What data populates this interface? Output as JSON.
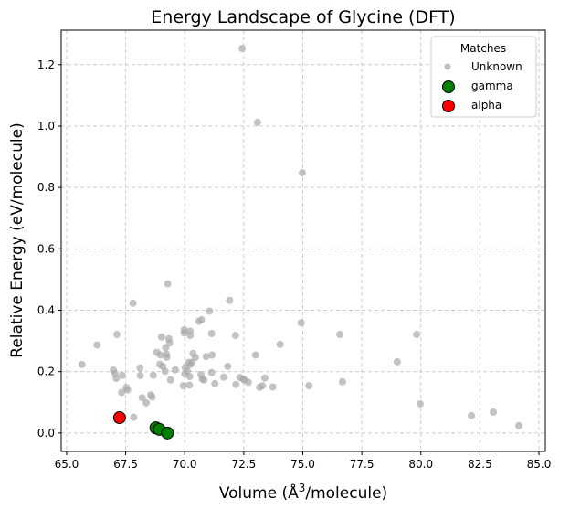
{
  "chart_data": {
    "type": "scatter",
    "title": "Energy Landscape of Glycine (DFT)",
    "xlabel": "Volume (Å³/molecule)",
    "xlabel_parts": {
      "pre": "Volume (Å",
      "sup": "3",
      "post": "/molecule)"
    },
    "ylabel": "Relative Energy (eV/molecule)",
    "xlim": [
      64.77,
      85.27
    ],
    "ylim": [
      -0.06,
      1.3125
    ],
    "xticks": [
      65.0,
      67.5,
      70.0,
      72.5,
      75.0,
      77.5,
      80.0,
      82.5,
      85.0
    ],
    "xtick_labels": [
      "65.0",
      "67.5",
      "70.0",
      "72.5",
      "75.0",
      "77.5",
      "80.0",
      "82.5",
      "85.0"
    ],
    "yticks": [
      0.0,
      0.2,
      0.4,
      0.6,
      0.8,
      1.0,
      1.2
    ],
    "ytick_labels": [
      "0.0",
      "0.2",
      "0.4",
      "0.6",
      "0.8",
      "1.0",
      "1.2"
    ],
    "grid": true,
    "legend": {
      "title": "Matches",
      "placement": "top-right"
    },
    "series": [
      {
        "name": "Unknown",
        "color": "#a9a9a9",
        "points": [
          [
            65.65,
            0.223
          ],
          [
            66.29,
            0.287
          ],
          [
            67.13,
            0.321
          ],
          [
            67.81,
            0.423
          ],
          [
            69.28,
            0.486
          ],
          [
            66.98,
            0.205
          ],
          [
            67.1,
            0.178
          ],
          [
            67.05,
            0.193
          ],
          [
            67.36,
            0.188
          ],
          [
            67.33,
            0.132
          ],
          [
            67.53,
            0.148
          ],
          [
            67.58,
            0.14
          ],
          [
            68.11,
            0.212
          ],
          [
            68.12,
            0.187
          ],
          [
            68.2,
            0.115
          ],
          [
            68.37,
            0.098
          ],
          [
            68.56,
            0.124
          ],
          [
            68.62,
            0.117
          ],
          [
            68.67,
            0.188
          ],
          [
            68.82,
            0.263
          ],
          [
            68.97,
            0.254
          ],
          [
            69.02,
            0.313
          ],
          [
            68.95,
            0.224
          ],
          [
            69.07,
            0.217
          ],
          [
            69.17,
            0.201
          ],
          [
            69.19,
            0.278
          ],
          [
            69.23,
            0.257
          ],
          [
            69.24,
            0.247
          ],
          [
            69.33,
            0.307
          ],
          [
            69.36,
            0.293
          ],
          [
            69.4,
            0.173
          ],
          [
            69.6,
            0.206
          ],
          [
            67.84,
            0.051
          ],
          [
            69.98,
            0.336
          ],
          [
            70.23,
            0.332
          ],
          [
            69.98,
            0.326
          ],
          [
            70.23,
            0.318
          ],
          [
            70.02,
            0.214
          ],
          [
            69.94,
            0.154
          ],
          [
            70.2,
            0.156
          ],
          [
            70.35,
            0.259
          ],
          [
            70.45,
            0.246
          ],
          [
            70.17,
            0.23
          ],
          [
            70.3,
            0.23
          ],
          [
            70.23,
            0.223
          ],
          [
            70.11,
            0.202
          ],
          [
            70.0,
            0.193
          ],
          [
            70.21,
            0.184
          ],
          [
            70.6,
            0.364
          ],
          [
            70.71,
            0.369
          ],
          [
            71.05,
            0.397
          ],
          [
            71.14,
            0.324
          ],
          [
            71.9,
            0.432
          ],
          [
            72.15,
            0.318
          ],
          [
            70.91,
            0.249
          ],
          [
            71.16,
            0.254
          ],
          [
            71.82,
            0.217
          ],
          [
            71.14,
            0.197
          ],
          [
            70.69,
            0.19
          ],
          [
            70.75,
            0.176
          ],
          [
            70.81,
            0.173
          ],
          [
            71.65,
            0.182
          ],
          [
            72.34,
            0.181
          ],
          [
            72.47,
            0.176
          ],
          [
            72.52,
            0.173
          ],
          [
            72.69,
            0.165
          ],
          [
            73.39,
            0.179
          ],
          [
            73.17,
            0.149
          ],
          [
            73.29,
            0.154
          ],
          [
            73.73,
            0.15
          ],
          [
            71.28,
            0.161
          ],
          [
            72.17,
            0.158
          ],
          [
            73.0,
            0.254
          ],
          [
            74.04,
            0.289
          ],
          [
            74.93,
            0.359
          ],
          [
            75.26,
            0.154
          ],
          [
            72.43,
            1.253
          ],
          [
            73.08,
            1.012
          ],
          [
            74.98,
            0.848
          ],
          [
            76.57,
            0.321
          ],
          [
            79.82,
            0.321
          ],
          [
            79.0,
            0.232
          ],
          [
            76.68,
            0.167
          ],
          [
            79.97,
            0.095
          ],
          [
            82.14,
            0.057
          ],
          [
            83.07,
            0.068
          ],
          [
            84.15,
            0.024
          ]
        ]
      },
      {
        "name": "gamma",
        "color": "#008000",
        "points": [
          [
            68.78,
            0.017
          ],
          [
            68.92,
            0.012
          ],
          [
            69.27,
            0.0
          ]
        ]
      },
      {
        "name": "alpha",
        "color": "#ff0000",
        "points": [
          [
            67.24,
            0.05
          ]
        ]
      }
    ]
  }
}
